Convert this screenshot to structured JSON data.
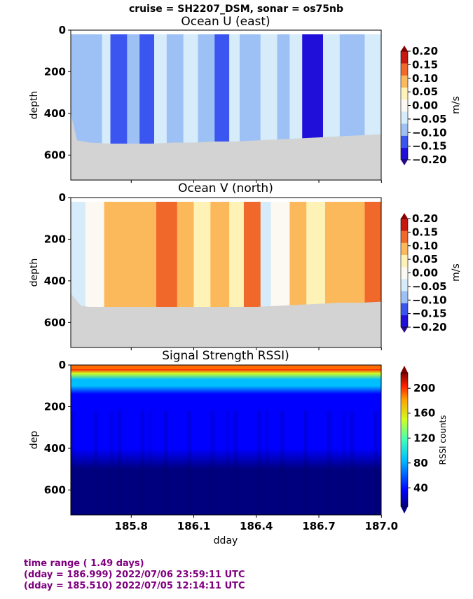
{
  "suptitle": "cruise = SH2207_DSM,  sonar = os75nb",
  "colors": {
    "land_gray": "#d3d3d3",
    "footer_purple": "#800080"
  },
  "footer": {
    "line1": "time range ( 1.49 days)",
    "line2": "(dday = 186.999) 2022/07/06 23:59:11 UTC",
    "line3": "(dday = 185.510) 2022/07/05 12:14:11 UTC"
  },
  "chart_data": [
    {
      "type": "heatmap",
      "title": "Ocean U (east)",
      "ylabel": "depth",
      "xlabel": "",
      "xlim": [
        185.51,
        186.999
      ],
      "ylim": [
        720,
        0
      ],
      "yticks": [
        "0",
        "200",
        "400",
        "600"
      ],
      "colormap": "diverging blue-white-red",
      "colorbar": {
        "label": "m/s",
        "ticks": [
          "0.20",
          "0.15",
          "0.10",
          "0.05",
          "0.00",
          "−0.05",
          "−0.10",
          "−0.15",
          "−0.20"
        ],
        "range": [
          -0.2,
          0.2
        ],
        "colors": [
          "#1f0fd9",
          "#3b55f0",
          "#9ec1f5",
          "#d6ecfa",
          "#fbf9f2",
          "#fff2b6",
          "#fbb95c",
          "#f0682a",
          "#c8180f"
        ]
      },
      "bottom_depth_m": [
        [
          185.51,
          400
        ],
        [
          185.54,
          530
        ],
        [
          185.6,
          540
        ],
        [
          185.7,
          545
        ],
        [
          185.8,
          545
        ],
        [
          185.9,
          545
        ],
        [
          186.0,
          540
        ],
        [
          186.1,
          540
        ],
        [
          186.2,
          535
        ],
        [
          186.3,
          535
        ],
        [
          186.4,
          530
        ],
        [
          186.5,
          525
        ],
        [
          186.6,
          520
        ],
        [
          186.7,
          515
        ],
        [
          186.8,
          510
        ],
        [
          186.9,
          505
        ],
        [
          186.999,
          500
        ]
      ],
      "bands": [
        {
          "x": [
            185.51,
            185.58
          ],
          "value": -0.07
        },
        {
          "x": [
            185.58,
            185.66
          ],
          "value": -0.11
        },
        {
          "x": [
            185.66,
            185.7
          ],
          "value": -0.04
        },
        {
          "x": [
            185.7,
            185.78
          ],
          "value": -0.13
        },
        {
          "x": [
            185.78,
            185.84
          ],
          "value": -0.07
        },
        {
          "x": [
            185.84,
            185.91
          ],
          "value": -0.12
        },
        {
          "x": [
            185.91,
            185.97
          ],
          "value": -0.04
        },
        {
          "x": [
            185.97,
            186.05
          ],
          "value": -0.09
        },
        {
          "x": [
            186.05,
            186.12
          ],
          "value": -0.05
        },
        {
          "x": [
            186.12,
            186.2
          ],
          "value": -0.07
        },
        {
          "x": [
            186.2,
            186.27
          ],
          "value": -0.14
        },
        {
          "x": [
            186.27,
            186.32
          ],
          "value": -0.05
        },
        {
          "x": [
            186.32,
            186.42
          ],
          "value": -0.08
        },
        {
          "x": [
            186.42,
            186.5
          ],
          "value": -0.03
        },
        {
          "x": [
            186.5,
            186.56
          ],
          "value": -0.11
        },
        {
          "x": [
            186.56,
            186.62
          ],
          "value": -0.05
        },
        {
          "x": [
            186.62,
            186.72
          ],
          "value": -0.18
        },
        {
          "x": [
            186.72,
            186.8
          ],
          "value": -0.06
        },
        {
          "x": [
            186.8,
            186.92
          ],
          "value": -0.11
        },
        {
          "x": [
            186.92,
            186.999
          ],
          "value": -0.05
        }
      ]
    },
    {
      "type": "heatmap",
      "title": "Ocean V (north)",
      "ylabel": "depth",
      "xlabel": "",
      "xlim": [
        185.51,
        186.999
      ],
      "ylim": [
        720,
        0
      ],
      "yticks": [
        "0",
        "200",
        "400",
        "600"
      ],
      "colormap": "diverging blue-white-red",
      "colorbar": {
        "label": "m/s",
        "ticks": [
          "0.20",
          "0.15",
          "0.10",
          "0.05",
          "0.00",
          "−0.05",
          "−0.10",
          "−0.15",
          "−0.20"
        ],
        "range": [
          -0.2,
          0.2
        ],
        "colors": [
          "#1f0fd9",
          "#3b55f0",
          "#9ec1f5",
          "#d6ecfa",
          "#fbf9f2",
          "#fff2b6",
          "#fbb95c",
          "#f0682a",
          "#c8180f"
        ]
      },
      "bottom_depth_m": [
        [
          185.51,
          460
        ],
        [
          185.56,
          520
        ],
        [
          185.6,
          525
        ],
        [
          185.8,
          525
        ],
        [
          186.0,
          525
        ],
        [
          186.2,
          525
        ],
        [
          186.4,
          525
        ],
        [
          186.5,
          520
        ],
        [
          186.6,
          515
        ],
        [
          186.7,
          510
        ],
        [
          186.8,
          505
        ],
        [
          186.9,
          505
        ],
        [
          186.999,
          500
        ]
      ],
      "bands": [
        {
          "x": [
            185.51,
            185.58
          ],
          "value": -0.05
        },
        {
          "x": [
            185.58,
            185.67
          ],
          "value": 0.01
        },
        {
          "x": [
            185.67,
            185.76
          ],
          "value": 0.08
        },
        {
          "x": [
            185.76,
            185.84
          ],
          "value": 0.11
        },
        {
          "x": [
            185.84,
            185.92
          ],
          "value": 0.07
        },
        {
          "x": [
            185.92,
            186.02
          ],
          "value": 0.12
        },
        {
          "x": [
            186.02,
            186.1
          ],
          "value": 0.08
        },
        {
          "x": [
            186.1,
            186.18
          ],
          "value": 0.04
        },
        {
          "x": [
            186.18,
            186.27
          ],
          "value": 0.1
        },
        {
          "x": [
            186.27,
            186.34
          ],
          "value": 0.06
        },
        {
          "x": [
            186.34,
            186.42
          ],
          "value": 0.12
        },
        {
          "x": [
            186.42,
            186.47
          ],
          "value": -0.06
        },
        {
          "x": [
            186.47,
            186.56
          ],
          "value": 0.02
        },
        {
          "x": [
            186.56,
            186.64
          ],
          "value": 0.08
        },
        {
          "x": [
            186.64,
            186.73
          ],
          "value": 0.04
        },
        {
          "x": [
            186.73,
            186.82
          ],
          "value": 0.11
        },
        {
          "x": [
            186.82,
            186.92
          ],
          "value": 0.07
        },
        {
          "x": [
            186.92,
            186.999
          ],
          "value": 0.13
        }
      ]
    },
    {
      "type": "heatmap",
      "title": "Signal Strength RSSI)",
      "ylabel": "dep",
      "xlabel": "dday",
      "xlim": [
        185.51,
        186.999
      ],
      "ylim": [
        720,
        0
      ],
      "xticks": [
        "185.8",
        "186.1",
        "186.4",
        "186.7",
        "187.0"
      ],
      "yticks": [
        "0",
        "200",
        "400",
        "600"
      ],
      "colormap": "jet",
      "colorbar": {
        "label": "RSSI counts",
        "ticks": [
          "200",
          "160",
          "120",
          "80",
          "40"
        ],
        "range": [
          10,
          225
        ]
      },
      "profile_rssi_vs_depth": [
        [
          20,
          215
        ],
        [
          40,
          160
        ],
        [
          70,
          110
        ],
        [
          100,
          90
        ],
        [
          140,
          75
        ],
        [
          200,
          60
        ],
        [
          300,
          48
        ],
        [
          400,
          40
        ],
        [
          500,
          35
        ],
        [
          600,
          30
        ],
        [
          720,
          27
        ]
      ]
    }
  ]
}
